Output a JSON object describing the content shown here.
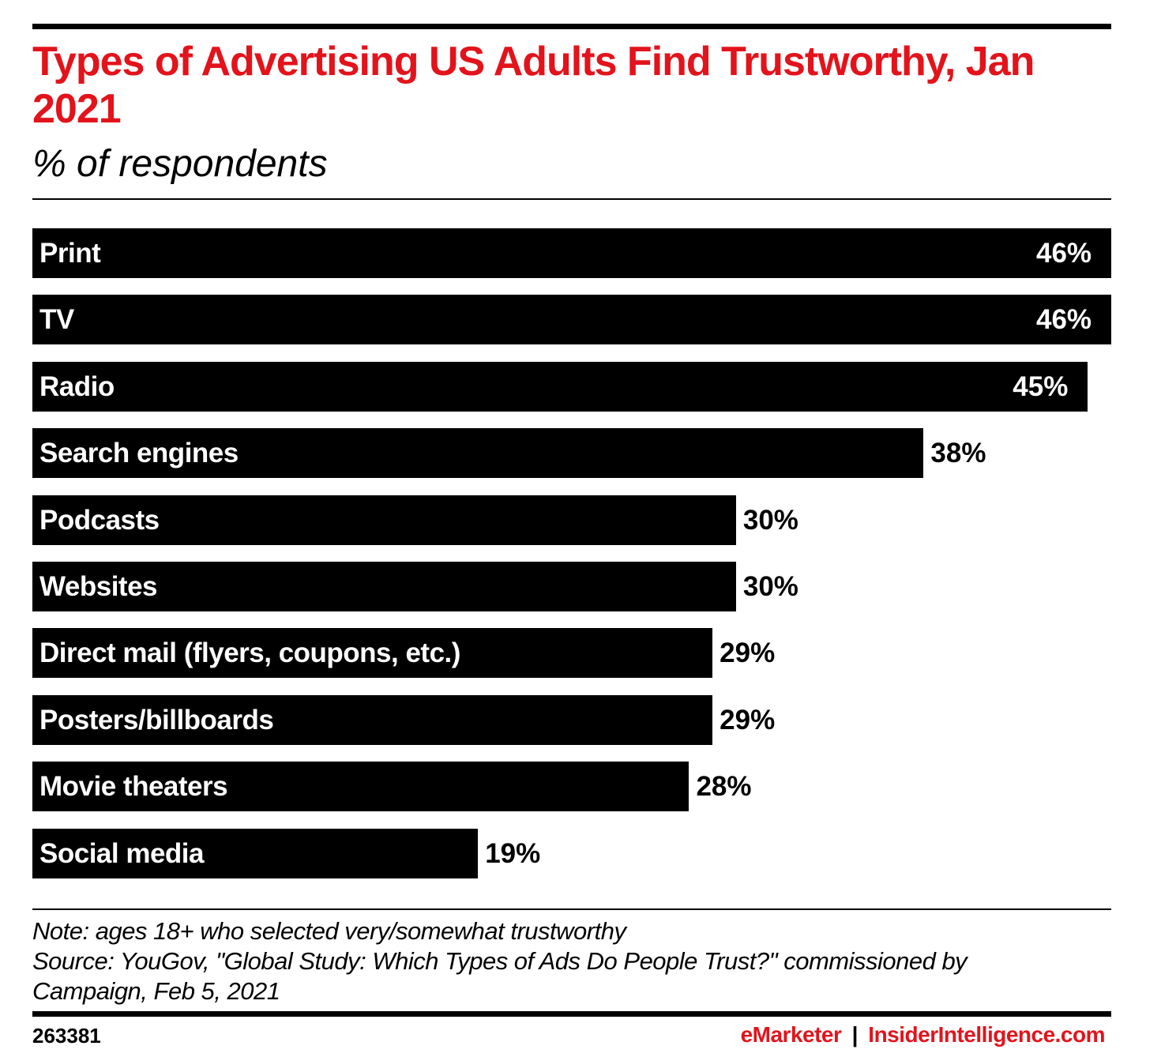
{
  "colors": {
    "title": "#e3131b",
    "bar": "#000000",
    "brand_red": "#e3131b"
  },
  "chart_data": {
    "type": "bar",
    "orientation": "horizontal",
    "title": "Types of Advertising US Adults Find Trustworthy, Jan 2021",
    "subtitle": "% of respondents",
    "categories": [
      "Print",
      "TV",
      "Radio",
      "Search engines",
      "Podcasts",
      "Websites",
      "Direct mail (flyers, coupons, etc.)",
      "Posters/billboards",
      "Movie theaters",
      "Social media"
    ],
    "values": [
      46,
      46,
      45,
      38,
      30,
      30,
      29,
      29,
      28,
      19
    ],
    "value_labels": [
      "46%",
      "46%",
      "45%",
      "38%",
      "30%",
      "30%",
      "29%",
      "29%",
      "28%",
      "19%"
    ],
    "xlim": [
      0,
      46
    ],
    "grid": false
  },
  "footer": {
    "note": "Note: ages 18+ who selected very/somewhat trustworthy",
    "source": "Source: YouGov, \"Global Study: Which Types of Ads Do People Trust?\" commissioned by Campaign, Feb 5, 2021",
    "chart_id": "263381",
    "brand_emarketer": "eMarketer",
    "brand_separator": "|",
    "brand_insider": "InsiderIntelligence.com"
  }
}
